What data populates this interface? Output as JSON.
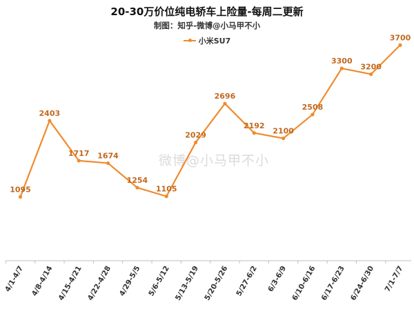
{
  "chart_data": {
    "type": "line",
    "title": "20-30万价位纯电轿车上险量-每周二更新",
    "subtitle": "制图：知乎-微博@小马甲不小",
    "watermark": "微博@小马甲不小",
    "categories": [
      "4/1-4/7",
      "4/8-4/14",
      "4/15-4/21",
      "4/22-4/28",
      "4/29-5/5",
      "5/6-5/12",
      "5/13-5/19",
      "5/20-5/26",
      "5/27-6/2",
      "6/3-6/9",
      "6/10-6/16",
      "6/17-6/23",
      "6/24-6/30",
      "7/1-7/7"
    ],
    "series": [
      {
        "name": "小米SU7",
        "color": "#f08a2c",
        "values": [
          1095,
          2403,
          1717,
          1674,
          1254,
          1105,
          2029,
          2696,
          2192,
          2100,
          2508,
          3300,
          3200,
          3700
        ]
      }
    ],
    "ylim": [
      0,
      4000
    ],
    "grid": false,
    "legend": "top-center"
  }
}
